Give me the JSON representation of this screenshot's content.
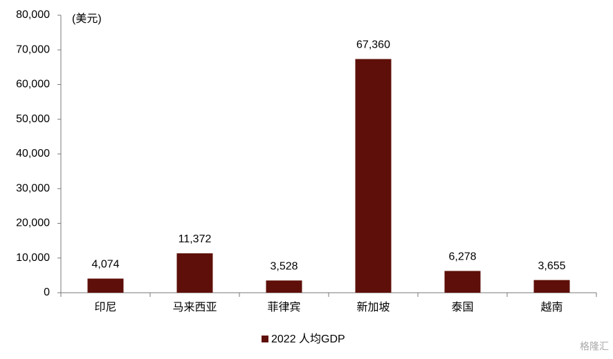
{
  "chart_data": {
    "type": "bar",
    "unit_label": "(美元)",
    "categories": [
      "印尼",
      "马来西亚",
      "菲律宾",
      "新加坡",
      "泰国",
      "越南"
    ],
    "series": [
      {
        "name": "2022 人均GDP",
        "color": "#5e0f09",
        "values": [
          4074,
          11372,
          3528,
          67360,
          6278,
          3655
        ],
        "value_labels": [
          "4,074",
          "11,372",
          "3,528",
          "67,360",
          "6,278",
          "3,655"
        ]
      }
    ],
    "ylim": [
      0,
      80000
    ],
    "yticks": [
      0,
      {
        "value": 10000,
        "label": "10,000"
      },
      {
        "value": 20000,
        "label": "20,000"
      },
      {
        "value": 30000,
        "label": "30,000"
      },
      {
        "value": 40000,
        "label": "40,000"
      },
      {
        "value": 50000,
        "label": "50,000"
      },
      {
        "value": 60000,
        "label": "60,000"
      },
      {
        "value": 70000,
        "label": "70,000"
      },
      {
        "value": 80000,
        "label": "80,000"
      }
    ],
    "grid": false,
    "legend": "bottom",
    "watermark": "格隆汇"
  }
}
